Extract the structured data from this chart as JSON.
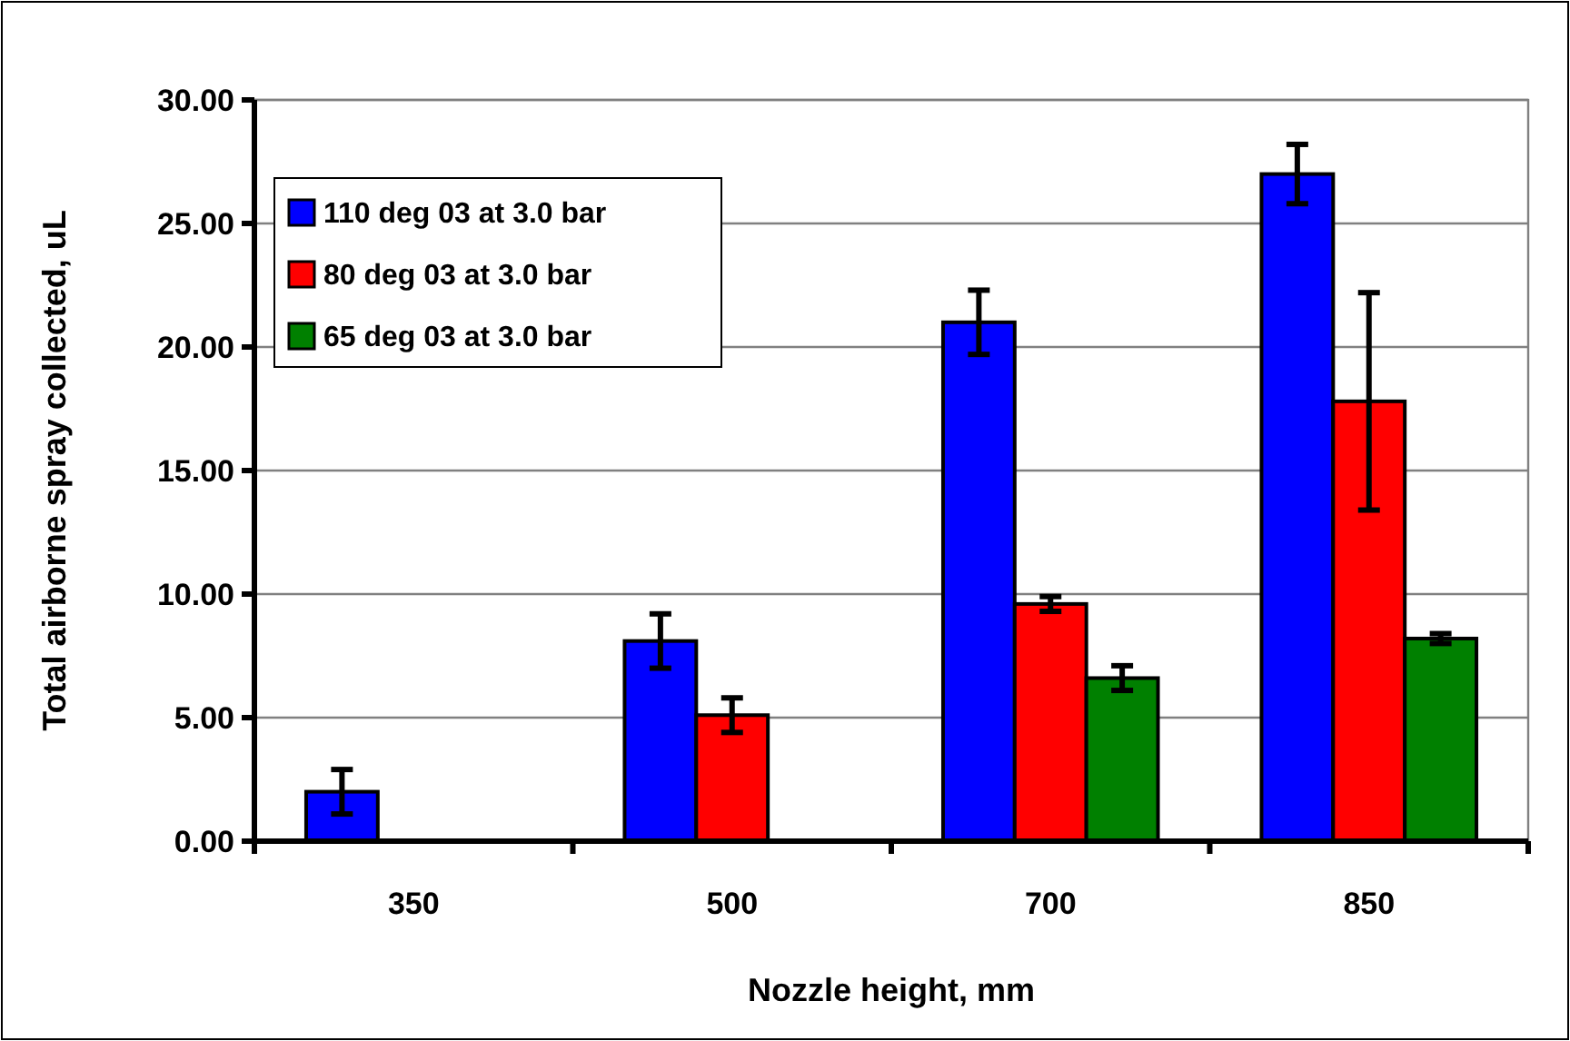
{
  "chart_data": {
    "type": "bar",
    "xlabel": "Nozzle height, mm",
    "ylabel": "Total airborne spray collected, uL",
    "categories": [
      "350",
      "500",
      "700",
      "850"
    ],
    "series": [
      {
        "name": "110 deg 03 at 3.0 bar",
        "color": "#0000ff",
        "values": [
          2.0,
          8.1,
          21.0,
          27.0
        ],
        "errors": [
          0.9,
          1.1,
          1.3,
          1.2
        ]
      },
      {
        "name": "80 deg 03 at 3.0 bar",
        "color": "#ff0000",
        "values": [
          null,
          5.1,
          9.6,
          17.8
        ],
        "errors": [
          null,
          0.7,
          0.3,
          4.4
        ]
      },
      {
        "name": "65 deg 03 at 3.0 bar",
        "color": "#008000",
        "values": [
          null,
          null,
          6.6,
          8.2
        ],
        "errors": [
          null,
          null,
          0.5,
          0.2
        ]
      }
    ],
    "ylim": [
      0,
      30
    ],
    "yticks": [
      {
        "value": 0,
        "label": "0.00"
      },
      {
        "value": 5,
        "label": "5.00"
      },
      {
        "value": 10,
        "label": "10.00"
      },
      {
        "value": 15,
        "label": "15.00"
      },
      {
        "value": 20,
        "label": "20.00"
      },
      {
        "value": 25,
        "label": "25.00"
      },
      {
        "value": 30,
        "label": "30.00"
      }
    ],
    "grid": "y",
    "legend": "top left"
  }
}
